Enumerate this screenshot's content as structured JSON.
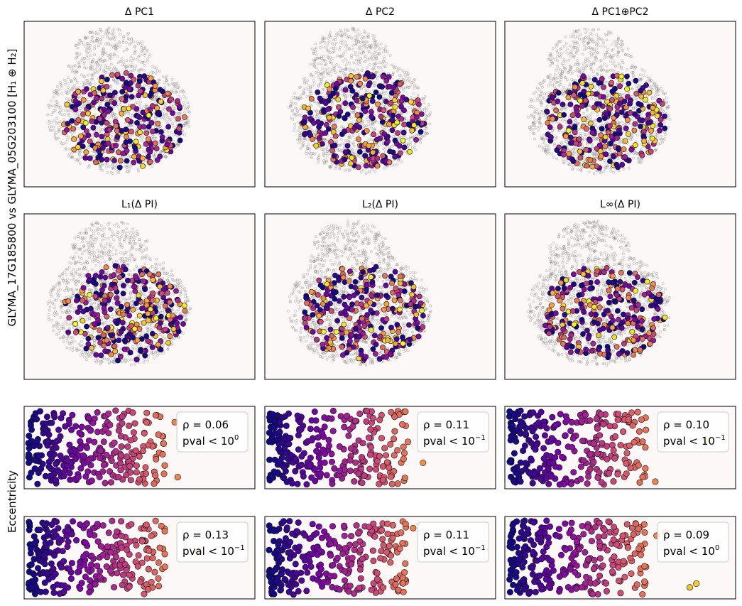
{
  "figure": {
    "ylabel_top": "GLYMA_17G185800 vs GLYMA_05G203100 [H₁ ⊕ H₂]",
    "ylabel_bottom": "Eccentricity"
  },
  "colors": {
    "panel_bg": "#fcf8f7",
    "cloud": "#7a7a7a",
    "colormap": "plasma"
  },
  "chart_data": [
    {
      "type": "scatter",
      "panel": "map",
      "title": "Δ PC1",
      "seed": 11
    },
    {
      "type": "scatter",
      "panel": "map",
      "title": "Δ PC2",
      "seed": 23
    },
    {
      "type": "scatter",
      "panel": "map",
      "title": "Δ PC1⊕PC2",
      "seed": 37
    },
    {
      "type": "scatter",
      "panel": "map",
      "title": "L₁(Δ PI)",
      "seed": 41
    },
    {
      "type": "scatter",
      "panel": "map",
      "title": "L₂(Δ PI)",
      "seed": 53
    },
    {
      "type": "scatter",
      "panel": "map",
      "title": "L∞(Δ PI)",
      "seed": 67
    },
    {
      "type": "scatter",
      "panel": "corr",
      "rho": "ρ = 0.06",
      "pval": "pval < 10",
      "pexp": "0",
      "seed": 71
    },
    {
      "type": "scatter",
      "panel": "corr",
      "rho": "ρ = 0.11",
      "pval": "pval < 10",
      "pexp": "−1",
      "seed": 83
    },
    {
      "type": "scatter",
      "panel": "corr",
      "rho": "ρ = 0.10",
      "pval": "pval < 10",
      "pexp": "−1",
      "seed": 97
    },
    {
      "type": "scatter",
      "panel": "corr",
      "rho": "ρ = 0.13",
      "pval": "pval < 10",
      "pexp": "−1",
      "seed": 101
    },
    {
      "type": "scatter",
      "panel": "corr",
      "rho": "ρ = 0.11",
      "pval": "pval < 10",
      "pexp": "−1",
      "seed": 113
    },
    {
      "type": "scatter",
      "panel": "corr",
      "rho": "ρ = 0.09",
      "pval": "pval < 10",
      "pexp": "0",
      "seed": 127
    }
  ]
}
